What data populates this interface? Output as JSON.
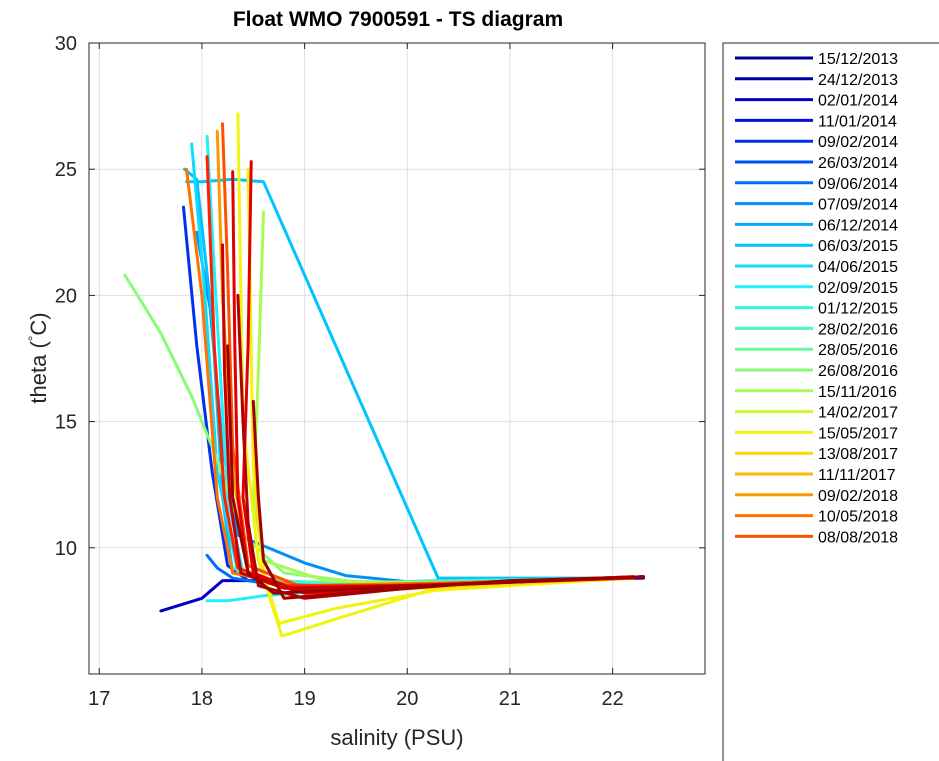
{
  "chart_data": {
    "type": "line",
    "title": "Float WMO 7900591 - TS diagram",
    "xlabel": "salinity (PSU)",
    "ylabel_main": "theta (",
    "ylabel_degree": "°",
    "ylabel_unit": "C)",
    "xlim": [
      16.9,
      22.9
    ],
    "ylim": [
      5,
      30
    ],
    "x_ticks": [
      "17",
      "18",
      "19",
      "20",
      "21",
      "22"
    ],
    "y_ticks": [
      "10",
      "15",
      "20",
      "25",
      "30"
    ],
    "grid": true,
    "legend_position": "outside-right",
    "series": [
      {
        "name": "15/12/2013",
        "color": "#00008F"
      },
      {
        "name": "24/12/2013",
        "color": "#0000A8"
      },
      {
        "name": "02/01/2014",
        "color": "#0000C8"
      },
      {
        "name": "11/01/2014",
        "color": "#0010E4"
      },
      {
        "name": "09/02/2014",
        "color": "#0030F0"
      },
      {
        "name": "26/03/2014",
        "color": "#0050F6"
      },
      {
        "name": "09/06/2014",
        "color": "#0070FA"
      },
      {
        "name": "07/09/2014",
        "color": "#0090FC"
      },
      {
        "name": "06/12/2014",
        "color": "#00A8FE"
      },
      {
        "name": "06/03/2015",
        "color": "#00C4FF"
      },
      {
        "name": "04/06/2015",
        "color": "#10DCFF"
      },
      {
        "name": "02/09/2015",
        "color": "#20F0FA"
      },
      {
        "name": "01/12/2015",
        "color": "#30F6E0"
      },
      {
        "name": "28/02/2016",
        "color": "#48F8C4"
      },
      {
        "name": "28/05/2016",
        "color": "#68FA9C"
      },
      {
        "name": "26/08/2016",
        "color": "#88FC78"
      },
      {
        "name": "15/11/2016",
        "color": "#A8FC50"
      },
      {
        "name": "14/02/2017",
        "color": "#CCFA30"
      },
      {
        "name": "15/05/2017",
        "color": "#F0F410"
      },
      {
        "name": "13/08/2017",
        "color": "#FCD800"
      },
      {
        "name": "11/11/2017",
        "color": "#FFB800"
      },
      {
        "name": "09/02/2018",
        "color": "#FF9800"
      },
      {
        "name": "10/05/2018",
        "color": "#FF7400"
      },
      {
        "name": "08/08/2018",
        "color": "#FF5000"
      }
    ],
    "profiles": [
      {
        "color": "#0000C8",
        "s": [
          17.6,
          18.0,
          18.2,
          18.6,
          19.5,
          20.3,
          21.2,
          22.3
        ],
        "t": [
          7.5,
          8.0,
          8.7,
          8.7,
          8.55,
          8.6,
          8.7,
          8.8
        ]
      },
      {
        "color": "#0030F0",
        "s": [
          17.82,
          17.95,
          18.1,
          18.25,
          18.45,
          19.3,
          20.5,
          22.2
        ],
        "t": [
          23.5,
          18.0,
          13.0,
          9.3,
          8.7,
          8.5,
          8.6,
          8.8
        ]
      },
      {
        "color": "#0070FA",
        "s": [
          18.05,
          18.15,
          18.3,
          18.6,
          19.5,
          20.6,
          22.3
        ],
        "t": [
          9.7,
          9.2,
          8.8,
          8.6,
          8.5,
          8.6,
          8.85
        ]
      },
      {
        "color": "#0090FC",
        "s": [
          17.95,
          18.08,
          18.2,
          18.35,
          19.0,
          19.4,
          20.4,
          22.2
        ],
        "t": [
          22.5,
          19.5,
          14.0,
          10.5,
          9.4,
          8.9,
          8.5,
          8.8
        ]
      },
      {
        "color": "#00C4FF",
        "s": [
          17.83,
          17.95,
          18.1,
          18.2,
          18.3,
          18.9,
          20.0,
          21.5,
          22.2
        ],
        "t": [
          25.0,
          24.6,
          19.0,
          12.0,
          9.0,
          8.6,
          8.5,
          8.7,
          8.8
        ]
      },
      {
        "color": "#00C4FF",
        "s": [
          17.85,
          18.0,
          18.3,
          18.6,
          20.3,
          22.1
        ],
        "t": [
          24.5,
          24.5,
          24.6,
          24.5,
          8.8,
          8.8
        ]
      },
      {
        "color": "#10DCFF",
        "s": [
          17.9,
          18.02,
          18.15,
          18.35,
          18.8,
          20.3,
          22.2
        ],
        "t": [
          26.0,
          20.5,
          13.0,
          9.0,
          8.5,
          8.7,
          8.8
        ]
      },
      {
        "color": "#20F0FA",
        "s": [
          18.05,
          18.12,
          18.25,
          18.4,
          19.0,
          20.5,
          22.3
        ],
        "t": [
          26.3,
          21.0,
          12.0,
          9.0,
          8.4,
          8.6,
          8.85
        ]
      },
      {
        "color": "#20F0FA",
        "s": [
          18.05,
          18.25,
          18.6,
          19.2,
          20.4,
          22.2
        ],
        "t": [
          7.9,
          7.9,
          8.1,
          8.3,
          8.55,
          8.8
        ]
      },
      {
        "color": "#48F8C4",
        "s": [
          18.3,
          18.5,
          18.75,
          19.3,
          20.6,
          22.2
        ],
        "t": [
          9.2,
          8.9,
          8.7,
          8.6,
          8.7,
          8.8
        ]
      },
      {
        "color": "#88FC78",
        "s": [
          17.25,
          17.6,
          17.9,
          18.15,
          18.4,
          18.8,
          19.6,
          20.8,
          22.2
        ],
        "t": [
          20.8,
          18.5,
          16.0,
          13.5,
          10.5,
          9.0,
          8.6,
          8.65,
          8.8
        ]
      },
      {
        "color": "#A8FC50",
        "s": [
          18.6,
          18.55,
          18.5,
          18.6,
          19.2,
          20.3,
          22.2
        ],
        "t": [
          23.3,
          17.0,
          12.0,
          9.5,
          8.7,
          8.6,
          8.8
        ]
      },
      {
        "color": "#F0F410",
        "s": [
          18.35,
          18.4,
          18.55,
          18.7,
          18.78,
          19.4,
          20.2,
          22.2
        ],
        "t": [
          27.2,
          15.0,
          9.5,
          7.5,
          6.5,
          7.3,
          8.3,
          8.8
        ]
      },
      {
        "color": "#F0F410",
        "s": [
          18.45,
          18.5,
          18.6,
          18.75,
          19.3,
          20.4,
          22.2
        ],
        "t": [
          25.0,
          13.0,
          9.0,
          7.0,
          7.6,
          8.4,
          8.8
        ]
      },
      {
        "color": "#FCD800",
        "s": [
          18.5,
          18.55,
          18.6,
          18.8,
          19.6,
          22.1
        ],
        "t": [
          15.0,
          11.0,
          9.5,
          8.0,
          8.3,
          8.8
        ]
      },
      {
        "color": "#FF9800",
        "s": [
          18.15,
          18.2,
          18.3,
          18.45,
          19.0,
          20.5,
          22.2
        ],
        "t": [
          26.5,
          20.0,
          13.0,
          9.3,
          8.4,
          8.6,
          8.85
        ]
      },
      {
        "color": "#FF7400",
        "s": [
          17.85,
          18.0,
          18.15,
          18.3,
          18.9,
          20.3,
          22.2
        ],
        "t": [
          25.0,
          20.0,
          12.0,
          9.0,
          8.5,
          8.6,
          8.8
        ]
      },
      {
        "color": "#FF5000",
        "s": [
          18.2,
          18.25,
          18.3,
          18.45,
          19.0,
          20.8,
          22.2
        ],
        "t": [
          26.8,
          21.0,
          14.0,
          9.3,
          8.4,
          8.65,
          8.8
        ]
      },
      {
        "color": "#FF2000",
        "s": [
          18.05,
          18.12,
          18.22,
          18.35,
          18.8,
          20.0,
          22.2
        ],
        "t": [
          25.5,
          18.0,
          12.0,
          9.2,
          8.5,
          8.5,
          8.8
        ]
      },
      {
        "color": "#E00000",
        "s": [
          18.3,
          18.32,
          18.35,
          18.45,
          18.9,
          20.2,
          22.2
        ],
        "t": [
          24.9,
          18.0,
          12.0,
          9.0,
          8.3,
          8.5,
          8.85
        ]
      },
      {
        "color": "#E00000",
        "s": [
          18.48,
          18.45,
          18.4,
          18.5,
          19.0,
          20.2,
          22.2
        ],
        "t": [
          25.3,
          18.0,
          12.0,
          9.0,
          8.2,
          8.5,
          8.85
        ]
      },
      {
        "color": "#C40000",
        "s": [
          18.2,
          18.22,
          18.27,
          18.38,
          18.8,
          20.4,
          22.3
        ],
        "t": [
          22.0,
          17.0,
          12.0,
          9.0,
          8.4,
          8.55,
          8.85
        ]
      },
      {
        "color": "#B00000",
        "s": [
          18.35,
          18.4,
          18.45,
          18.55,
          19.0,
          20.4,
          22.3
        ],
        "t": [
          20.0,
          15.0,
          11.0,
          8.5,
          8.0,
          8.55,
          8.85
        ]
      },
      {
        "color": "#A00000",
        "s": [
          18.5,
          18.55,
          18.6,
          18.8,
          19.4,
          21.0,
          22.3
        ],
        "t": [
          15.8,
          12.0,
          9.5,
          8.0,
          8.2,
          8.7,
          8.85
        ]
      },
      {
        "color": "#9A0000",
        "s": [
          18.25,
          18.3,
          18.45,
          18.7,
          19.6,
          22.3
        ],
        "t": [
          18.0,
          12.0,
          9.0,
          8.2,
          8.4,
          8.85
        ]
      }
    ]
  }
}
